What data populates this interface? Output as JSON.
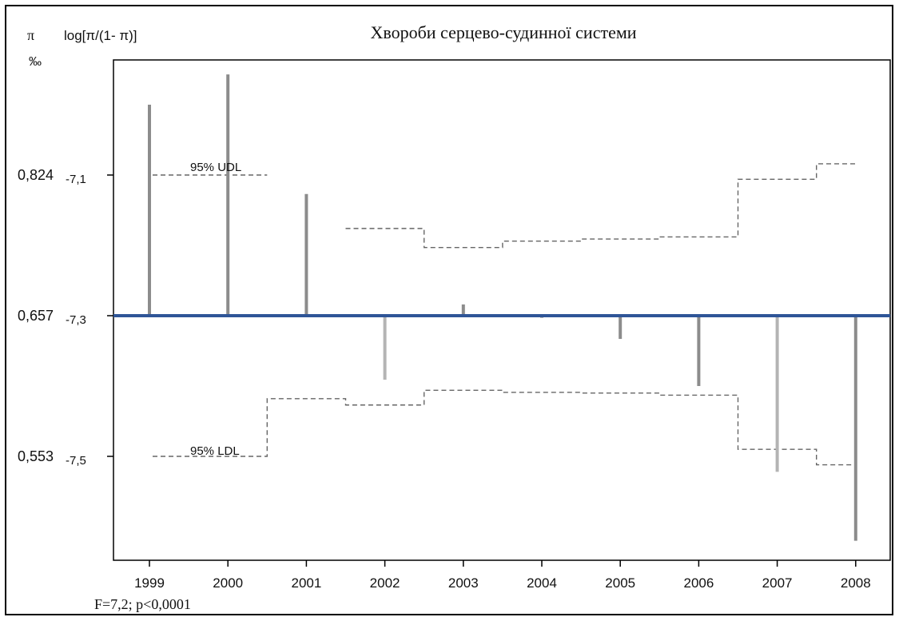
{
  "chart_data": {
    "type": "bar",
    "title": "Хвороби серцево-судинної системи",
    "y_left_label": "π",
    "y_left_unit": "‰",
    "y_right_label": "log[π/(1- π)]",
    "left_ticks": [
      "0,824",
      "0,657",
      "0,553"
    ],
    "right_ticks": [
      "-7,1",
      "-7,3",
      "-7,5"
    ],
    "categories": [
      "1999",
      "2000",
      "2001",
      "2002",
      "2003",
      "2004",
      "2005",
      "2006",
      "2007",
      "2008"
    ],
    "baseline": -7.3,
    "ylim": [
      -7.83,
      -6.95
    ],
    "values": [
      -7.0,
      -6.957,
      -7.127,
      -7.391,
      -7.284,
      -7.303,
      -7.333,
      -7.4,
      -7.522,
      -7.62
    ],
    "bar_colors": [
      "#8c8c8c",
      "#8c8c8c",
      "#8c8c8c",
      "#b4b4b4",
      "#8c8c8c",
      "#8c8c8c",
      "#8c8c8c",
      "#8c8c8c",
      "#b4b4b4",
      "#8c8c8c"
    ],
    "upper_limit": [
      -7.1,
      -7.1,
      null,
      -7.176,
      -7.203,
      -7.194,
      -7.191,
      -7.188,
      -7.106,
      -7.084
    ],
    "lower_limit": [
      -7.5,
      -7.5,
      -7.418,
      -7.427,
      -7.406,
      -7.409,
      -7.41,
      -7.413,
      -7.49,
      -7.512
    ],
    "ucl_label": "95% UDL",
    "lcl_label": "95% LDL",
    "baseline_color": "#2f5597",
    "footer": "F=7,2; p<0,0001"
  }
}
